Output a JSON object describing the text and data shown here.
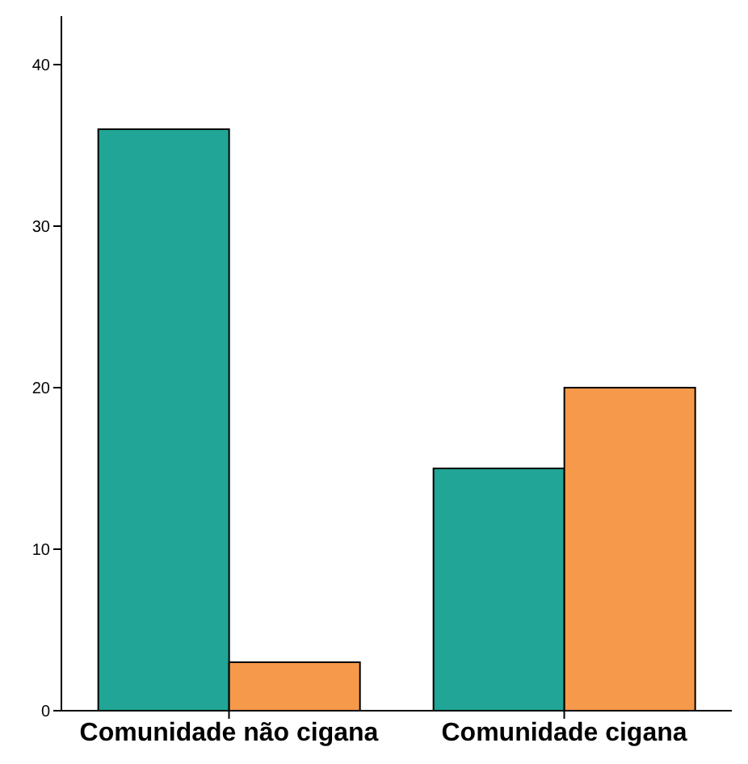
{
  "chart_data": {
    "type": "bar",
    "categories": [
      "Comunidade não cigana",
      "Comunidade cigana"
    ],
    "series": [
      {
        "color": "#20a596",
        "values": [
          36,
          15
        ]
      },
      {
        "color": "#f7994a",
        "values": [
          3,
          20
        ]
      }
    ],
    "ylim": [
      0,
      43
    ],
    "yticks": [
      0,
      10,
      20,
      30,
      40
    ],
    "grid": false,
    "legend": false
  }
}
